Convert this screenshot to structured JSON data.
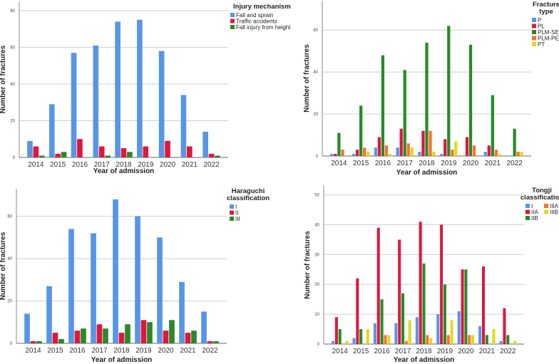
{
  "colors": {
    "blue": "#5596e6",
    "red": "#e0163d",
    "green": "#288a28",
    "orange": "#f5732a",
    "yellow": "#e3d81c"
  },
  "chart_data": [
    {
      "type": "bar",
      "title": "",
      "xlabel": "Year of admission",
      "ylabel": "Number of fractures",
      "legend_title": [
        "Injury mechanism"
      ],
      "legend_placement": "top-right",
      "categories": [
        "2014",
        "2015",
        "2016",
        "2017",
        "2018",
        "2019",
        "2020",
        "2021",
        "2022"
      ],
      "yticks": [
        0,
        20,
        40,
        60,
        80
      ],
      "ylim": [
        0,
        85
      ],
      "grid": true,
      "series": [
        {
          "name": "Fall and sprain",
          "color": "blue",
          "values": [
            9,
            29,
            57,
            61,
            74,
            75,
            58,
            34,
            14
          ]
        },
        {
          "name": "Traffic accidents",
          "color": "red",
          "values": [
            6,
            2,
            10,
            6,
            5,
            6,
            9,
            6,
            2
          ]
        },
        {
          "name": "Fall injury from height",
          "color": "green",
          "values": [
            1,
            3,
            0,
            1,
            3,
            0,
            0,
            0,
            1
          ]
        }
      ]
    },
    {
      "type": "bar",
      "title": "",
      "xlabel": "Year of admission",
      "ylabel": "Number of fractures",
      "legend_title": [
        "Fracture",
        "type"
      ],
      "legend_placement": "top-right",
      "categories": [
        "2014",
        "2015",
        "2016",
        "2017",
        "2018",
        "2019",
        "2020",
        "2021",
        "2022"
      ],
      "yticks": [
        0,
        20,
        40,
        60
      ],
      "ylim": [
        0,
        74
      ],
      "grid": true,
      "series": [
        {
          "name": "P",
          "color": "blue",
          "values": [
            1,
            1,
            4,
            4,
            2,
            1,
            0,
            2,
            0
          ]
        },
        {
          "name": "PL",
          "color": "red",
          "values": [
            1,
            3,
            9,
            13,
            12,
            8,
            9,
            5,
            0
          ]
        },
        {
          "name": "PLM-SER",
          "color": "green",
          "values": [
            11,
            24,
            48,
            41,
            54,
            62,
            53,
            29,
            13
          ]
        },
        {
          "name": "PLM-PER",
          "color": "orange",
          "values": [
            3,
            4,
            5,
            6,
            12,
            3,
            5,
            3,
            2
          ]
        },
        {
          "name": "PT",
          "color": "yellow",
          "values": [
            0,
            2,
            1,
            4,
            2,
            7,
            0,
            1,
            2
          ]
        }
      ]
    },
    {
      "type": "bar",
      "title": "",
      "xlabel": "Year of admission",
      "ylabel": "Number of fractures",
      "legend_title": [
        "Haraguchi",
        "classification"
      ],
      "legend_placement": "top-right",
      "categories": [
        "2014",
        "2015",
        "2016",
        "2017",
        "2018",
        "2019",
        "2020",
        "2021",
        "2022"
      ],
      "yticks": [
        0,
        20,
        40,
        60
      ],
      "ylim": [
        0,
        73
      ],
      "grid": true,
      "series": [
        {
          "name": "I",
          "color": "blue",
          "values": [
            14,
            27,
            54,
            52,
            68,
            60,
            50,
            29,
            15
          ]
        },
        {
          "name": "II",
          "color": "red",
          "values": [
            1,
            5,
            6,
            9,
            5,
            11,
            6,
            5,
            1
          ]
        },
        {
          "name": "III",
          "color": "green",
          "values": [
            1,
            2,
            7,
            7,
            9,
            10,
            11,
            6,
            1
          ]
        }
      ]
    },
    {
      "type": "bar",
      "title": "",
      "xlabel": "Year of admission",
      "ylabel": "Number of fractures",
      "legend_title": [
        "Tongji",
        "classification"
      ],
      "legend_placement": "top-right",
      "categories": [
        "2014",
        "2015",
        "2016",
        "2017",
        "2018",
        "2019",
        "2020",
        "2021",
        "2022"
      ],
      "yticks": [
        0,
        10,
        20,
        30,
        40,
        50
      ],
      "ylim": [
        0,
        53
      ],
      "grid": true,
      "series": [
        {
          "name": "I",
          "color": "blue",
          "values": [
            1,
            2,
            7,
            7,
            9,
            10,
            11,
            6,
            1
          ]
        },
        {
          "name": "IIA",
          "color": "red",
          "values": [
            9,
            22,
            39,
            35,
            41,
            40,
            25,
            26,
            12
          ]
        },
        {
          "name": "IIB",
          "color": "green",
          "values": [
            5,
            5,
            15,
            17,
            27,
            20,
            25,
            3,
            3
          ]
        },
        {
          "name": "IIIA",
          "color": "orange",
          "values": [
            0,
            0,
            3,
            1,
            3,
            3,
            3,
            0,
            0
          ]
        },
        {
          "name": "IIIB",
          "color": "yellow",
          "values": [
            1,
            5,
            3,
            8,
            2,
            8,
            3,
            5,
            1
          ]
        }
      ]
    }
  ]
}
